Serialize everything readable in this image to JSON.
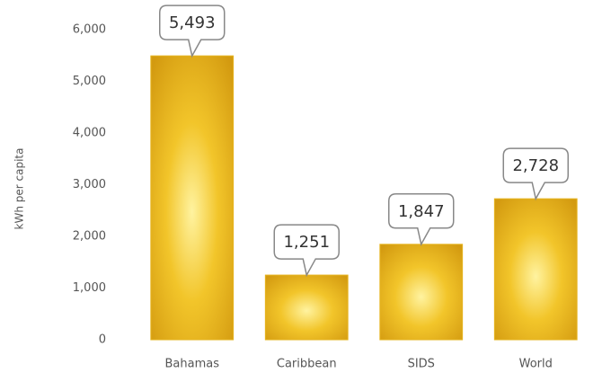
{
  "chart_data": {
    "type": "bar",
    "y_label": "kWh per capita",
    "categories": [
      "Bahamas",
      "Caribbean",
      "SIDS",
      "World"
    ],
    "values": [
      5493,
      1251,
      1847,
      2728
    ],
    "value_labels": [
      "5,493",
      "1,251",
      "1,847",
      "2,728"
    ],
    "color": "#e6b41e",
    "ylim": [
      0,
      6000
    ],
    "yticks": [
      {
        "value": 0,
        "label": "0"
      },
      {
        "value": 1000,
        "label": "1,000"
      },
      {
        "value": 2000,
        "label": "2,000"
      },
      {
        "value": 3000,
        "label": "3,000"
      },
      {
        "value": 4000,
        "label": "4,000"
      },
      {
        "value": 5000,
        "label": "5,000"
      },
      {
        "value": 6000,
        "label": "6,000"
      }
    ],
    "grid": false
  }
}
